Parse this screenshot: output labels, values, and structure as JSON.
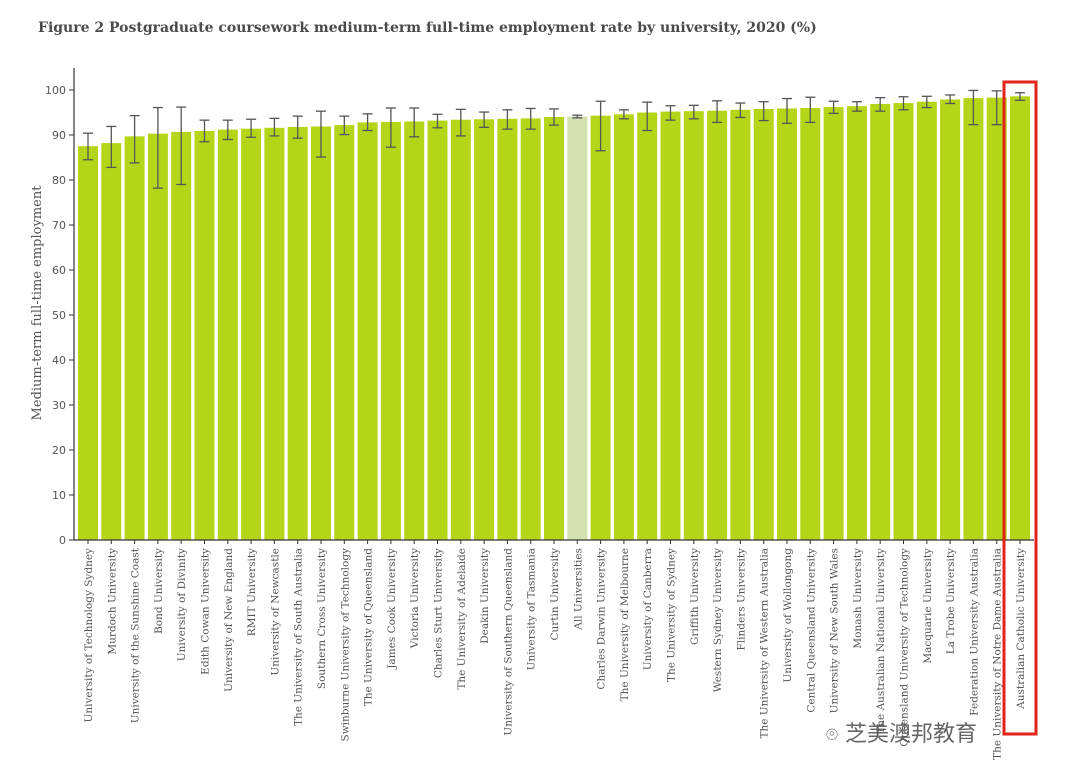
{
  "chart_data": {
    "type": "bar",
    "title": "Figure 2 Postgraduate coursework medium-term full-time employment rate by university, 2020 (%)",
    "ylabel": "Medium-term full-time employment",
    "xlabel": "",
    "ylim": [
      0,
      105
    ],
    "yticks": [
      0,
      10,
      20,
      30,
      40,
      50,
      60,
      70,
      80,
      90,
      100
    ],
    "grid": false,
    "colors": {
      "bar": "#b5d618",
      "highlight_bar": "#d4e0b0",
      "error_bar": "#555555",
      "highlight_box": "#e2231a",
      "axis": "#333333"
    },
    "highlight_category": "All Universities",
    "boxed_category": "Australian Catholic University",
    "categories": [
      "University of Technology Sydney",
      "Murdoch University",
      "University of the Sunshine Coast",
      "Bond University",
      "University of Divinity",
      "Edith Cowan University",
      "University of New England",
      "RMIT University",
      "University of Newcastle",
      "The University of South Australia",
      "Southern Cross University",
      "Swinburne University of Technology",
      "The University of Queensland",
      "James Cook University",
      "Victoria University",
      "Charles Sturt University",
      "The University of Adelaide",
      "Deakin University",
      "University of Southern Queensland",
      "University of Tasmania",
      "Curtin University",
      "All Universities",
      "Charles Darwin University",
      "The University of Melbourne",
      "University of Canberra",
      "The University of Sydney",
      "Griffith University",
      "Western Sydney University",
      "Flinders University",
      "The University of Western Australia",
      "University of Wollongong",
      "Central Queensland University",
      "University of New South Wales",
      "Monash University",
      "The Australian National University",
      "Queensland University of Technology",
      "Macquarie University",
      "La Trobe University",
      "Federation University Australia",
      "The University of Notre Dame Australia",
      "Australian Catholic University"
    ],
    "series": [
      {
        "values": [
          87.5,
          88.2,
          89.7,
          90.3,
          90.7,
          90.9,
          91.2,
          91.4,
          91.6,
          91.8,
          91.9,
          92.2,
          92.8,
          92.9,
          93.0,
          93.2,
          93.4,
          93.5,
          93.6,
          93.7,
          94.0,
          94.1,
          94.3,
          94.6,
          95.0,
          95.2,
          95.3,
          95.4,
          95.6,
          95.8,
          95.9,
          96.0,
          96.2,
          96.4,
          96.9,
          97.1,
          97.4,
          97.9,
          98.2,
          98.3,
          98.6
        ],
        "error_low": [
          84.5,
          82.8,
          83.8,
          78.2,
          79.0,
          88.5,
          89.0,
          89.5,
          89.8,
          89.3,
          85.1,
          90.1,
          91.0,
          87.3,
          89.6,
          91.6,
          89.8,
          91.7,
          91.3,
          91.3,
          92.2,
          93.8,
          86.5,
          93.6,
          91.0,
          93.3,
          93.6,
          92.8,
          93.9,
          93.2,
          92.6,
          92.8,
          94.8,
          95.3,
          95.3,
          95.6,
          96.1,
          97.0,
          92.3,
          92.3,
          97.7
        ],
        "error_high": [
          90.4,
          91.9,
          94.3,
          96.1,
          96.2,
          93.3,
          93.3,
          93.5,
          93.7,
          94.2,
          95.3,
          94.2,
          94.7,
          96.0,
          96.0,
          94.6,
          95.7,
          95.1,
          95.6,
          95.9,
          95.8,
          94.4,
          97.5,
          95.6,
          97.3,
          96.5,
          96.6,
          97.6,
          97.1,
          97.4,
          98.1,
          98.4,
          97.5,
          97.4,
          98.3,
          98.5,
          98.6,
          98.9,
          99.9,
          99.8,
          99.4
        ]
      }
    ]
  },
  "watermark": {
    "text": "芝美澳邦教育"
  }
}
